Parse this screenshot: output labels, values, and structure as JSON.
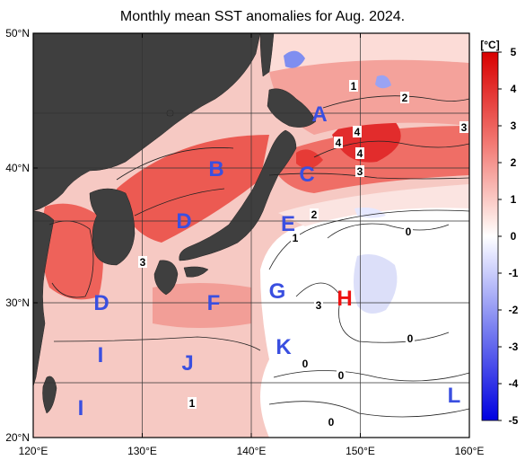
{
  "title": "Monthly mean SST anomalies for Aug. 2024.",
  "map": {
    "lon_ticks": [
      "120°E",
      "130°E",
      "140°E",
      "150°E",
      "160°E"
    ],
    "lat_ticks": [
      "50°N",
      "40°N",
      "30°N",
      "20°N"
    ],
    "lon_range": [
      120,
      160
    ],
    "lat_range": [
      20,
      50
    ],
    "grid": true
  },
  "colorbar": {
    "unit": "[°C]",
    "ticks": [
      "5",
      "4",
      "3",
      "2",
      "1",
      "0",
      "-1",
      "-2",
      "-3",
      "-4",
      "-5"
    ],
    "range": [
      -5,
      5
    ],
    "colors": {
      "warm": "#e8232a",
      "neutral": "#ffffff",
      "cool": "#1a1aff"
    }
  },
  "regions": [
    {
      "label": "A",
      "color": "#3a4fe0"
    },
    {
      "label": "B",
      "color": "#3a4fe0"
    },
    {
      "label": "C",
      "color": "#3a4fe0"
    },
    {
      "label": "D",
      "color": "#3a4fe0"
    },
    {
      "label": "E",
      "color": "#3a4fe0"
    },
    {
      "label": "D",
      "color": "#3a4fe0"
    },
    {
      "label": "F",
      "color": "#3a4fe0"
    },
    {
      "label": "G",
      "color": "#3a4fe0"
    },
    {
      "label": "H",
      "color": "#ee1111"
    },
    {
      "label": "I",
      "color": "#3a4fe0"
    },
    {
      "label": "J",
      "color": "#3a4fe0"
    },
    {
      "label": "K",
      "color": "#3a4fe0"
    },
    {
      "label": "I",
      "color": "#3a4fe0"
    },
    {
      "label": "L",
      "color": "#3a4fe0"
    }
  ],
  "contour_labels": [
    "1",
    "2",
    "3",
    "4",
    "4",
    "3",
    "4",
    "3",
    "2",
    "1",
    "0",
    "3",
    "0",
    "0",
    "0",
    "1",
    "0"
  ]
}
